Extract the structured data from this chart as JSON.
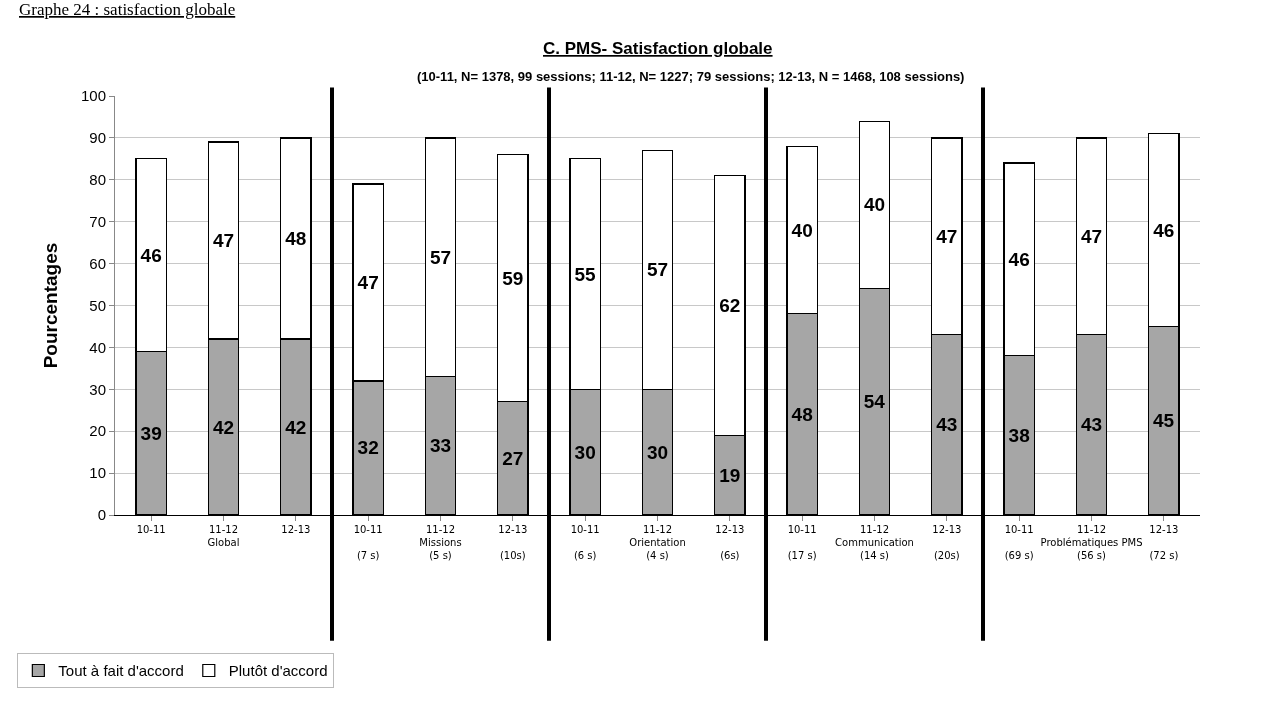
{
  "chart_data": {
    "type": "bar",
    "stacked": true,
    "title": "C. PMS- Satisfaction globale",
    "subtitle": "(10-11, N= 1378, 99 sessions; 11-12, N= 1227; 79 sessions; 12-13, N = 1468, 108 sessions)",
    "annotations": [
      "Graphe 24 : satisfaction globale"
    ],
    "ylabel": "Pourcentages",
    "categories": [
      "10-11",
      "11-12\nGlobal",
      "12-13",
      "10-11\n\n(7 s)",
      "11-12\nMissions\n(5 s)",
      "12-13\n\n(10s)",
      "10-11\n\n(6 s)",
      "11-12\nOrientation\n(4 s)",
      "12-13\n\n(6s)",
      "10-11\n\n(17 s)",
      "11-12\nCommunication\n(14 s)",
      "12-13\n\n(20s)",
      "10-11\n\n(69 s)",
      "11-12\nProblématiques PMS\n(56 s)",
      "12-13\n\n(72 s)"
    ],
    "series": [
      {
        "name": "Tout à fait d'accord",
        "color": "#a6a6a6",
        "values": [
          39,
          42,
          42,
          32,
          33,
          27,
          30,
          30,
          19,
          48,
          54,
          43,
          38,
          43,
          45
        ]
      },
      {
        "name": "Plutôt d'accord",
        "color": "#ffffff",
        "values": [
          46,
          47,
          48,
          47,
          57,
          59,
          55,
          57,
          62,
          40,
          40,
          47,
          46,
          47,
          46
        ]
      }
    ],
    "data_labels": true,
    "ylim": [
      0,
      100
    ],
    "yticks": [
      0,
      10,
      20,
      30,
      40,
      50,
      60,
      70,
      80,
      90,
      100
    ],
    "grid": "y",
    "legend": "bottom left"
  }
}
